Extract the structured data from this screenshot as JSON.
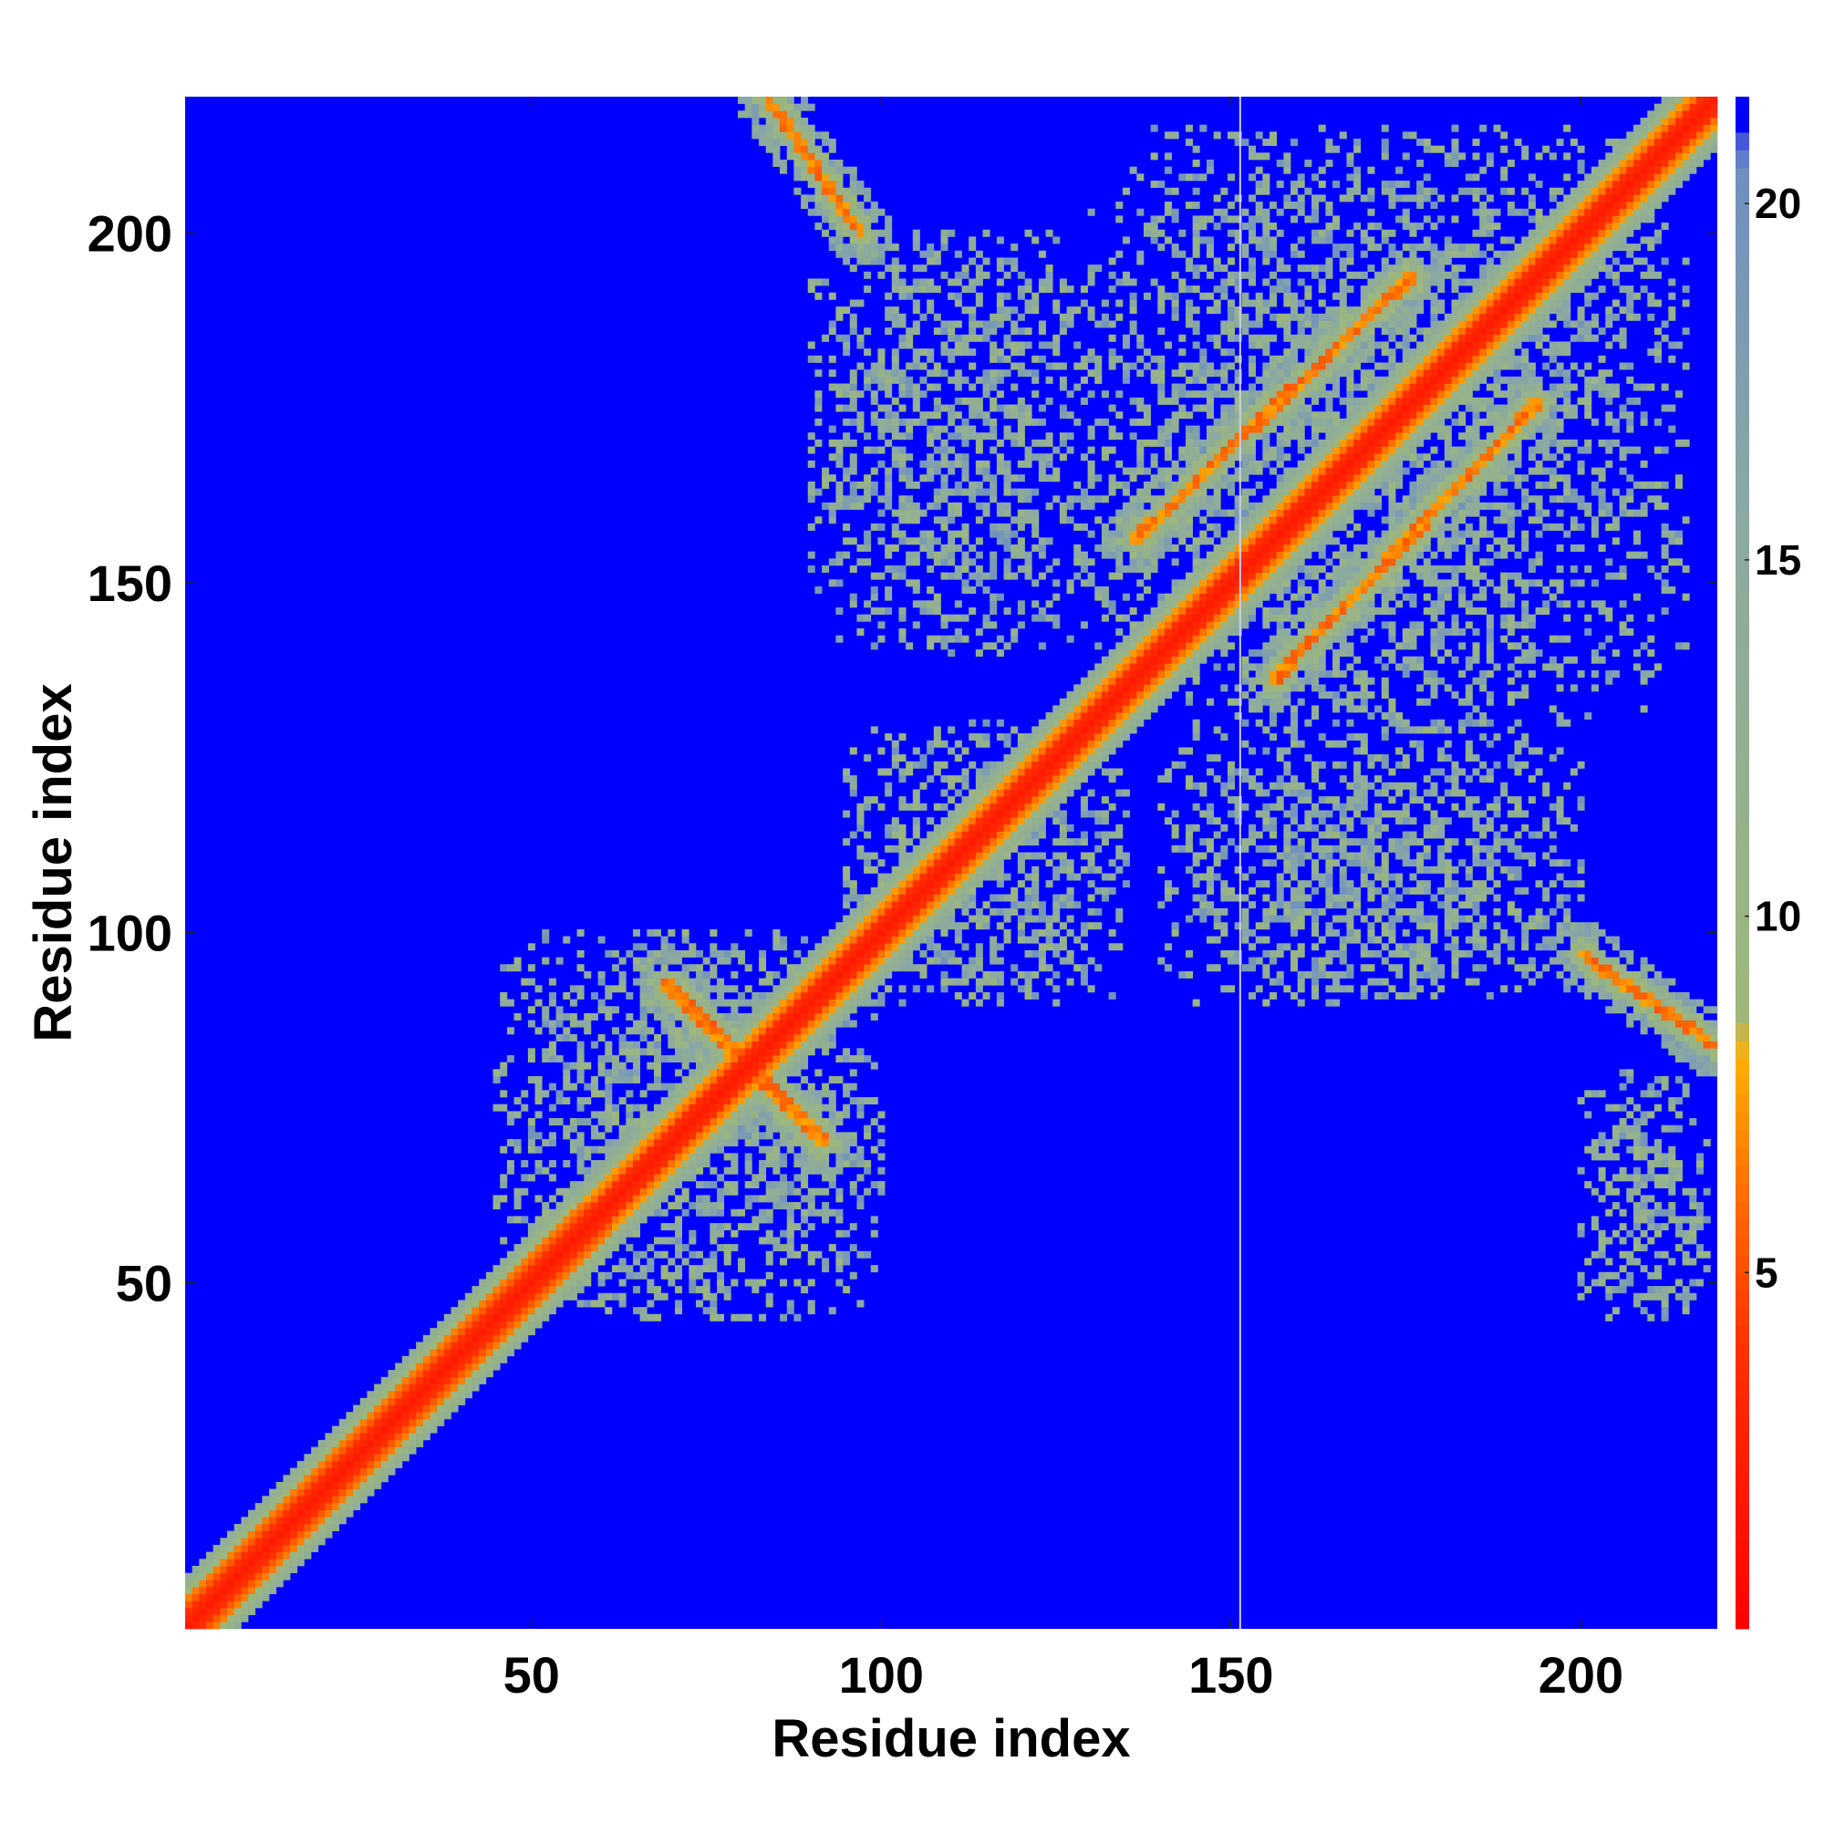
{
  "chart_data": {
    "type": "heatmap",
    "title": "",
    "xlabel": "Residue index",
    "ylabel": "Residue index",
    "xlim": [
      1,
      219
    ],
    "ylim": [
      1,
      219
    ],
    "x_ticks": [
      50,
      100,
      150,
      200
    ],
    "y_ticks": [
      50,
      100,
      150,
      200
    ],
    "x_tick_labels": [
      "50",
      "100",
      "150",
      "200"
    ],
    "y_tick_labels": [
      "50",
      "100",
      "150",
      "200"
    ],
    "colorbar": {
      "range": [
        0,
        21.5
      ],
      "ticks": [
        5,
        10,
        15,
        20
      ],
      "tick_labels": [
        "5",
        "10",
        "15",
        "20"
      ],
      "over_color": "#0000ff",
      "stops": [
        {
          "value": 0,
          "color": "#ff0000"
        },
        {
          "value": 4,
          "color": "#ff3000"
        },
        {
          "value": 6,
          "color": "#ff6a00"
        },
        {
          "value": 8,
          "color": "#ffb000"
        },
        {
          "value": 8.6,
          "color": "#9fb87a"
        },
        {
          "value": 12,
          "color": "#93b090"
        },
        {
          "value": 16,
          "color": "#8aa8a4"
        },
        {
          "value": 20.5,
          "color": "#6e8fc0"
        },
        {
          "value": 21.5,
          "color": "#0000ff"
        }
      ]
    },
    "description": "Symmetric residue-residue distance map. Red diagonal (distance < 4), orange/green contact bands; blue background means no contact (distance > 20).",
    "features": [
      {
        "kind": "diagonal_band",
        "start": 1,
        "end": 219,
        "core_width": 2,
        "halo_width": 7
      },
      {
        "kind": "antiparallel_strand",
        "x_start": 69,
        "x_end": 92,
        "y_start": 93,
        "y_end": 70
      },
      {
        "kind": "antiparallel_strand",
        "x_start": 84,
        "x_end": 97,
        "y_start": 219,
        "y_end": 200
      },
      {
        "kind": "antiparallel_strand",
        "x_start": 200,
        "x_end": 219,
        "y_start": 97,
        "y_end": 84
      },
      {
        "kind": "parallel_strand",
        "x_start": 136,
        "x_end": 176,
        "y_start": 156,
        "y_end": 194
      },
      {
        "kind": "parallel_strand",
        "x_start": 156,
        "x_end": 194,
        "y_start": 136,
        "y_end": 176
      },
      {
        "kind": "contact_cluster",
        "x_range": [
          95,
          135
        ],
        "y_range": [
          90,
          130
        ]
      },
      {
        "kind": "contact_cluster",
        "x_range": [
          130,
          215
        ],
        "y_range": [
          130,
          215
        ]
      },
      {
        "kind": "contact_cluster",
        "x_range": [
          45,
          100
        ],
        "y_range": [
          45,
          100
        ]
      },
      {
        "kind": "contact_cluster",
        "x_range": [
          140,
          200
        ],
        "y_range": [
          90,
          130
        ]
      },
      {
        "kind": "contact_cluster",
        "x_range": [
          90,
          130
        ],
        "y_range": [
          140,
          200
        ]
      },
      {
        "kind": "contact_cluster",
        "x_range": [
          200,
          218
        ],
        "y_range": [
          45,
          80
        ]
      }
    ],
    "vertical_line_x": 151.3
  }
}
